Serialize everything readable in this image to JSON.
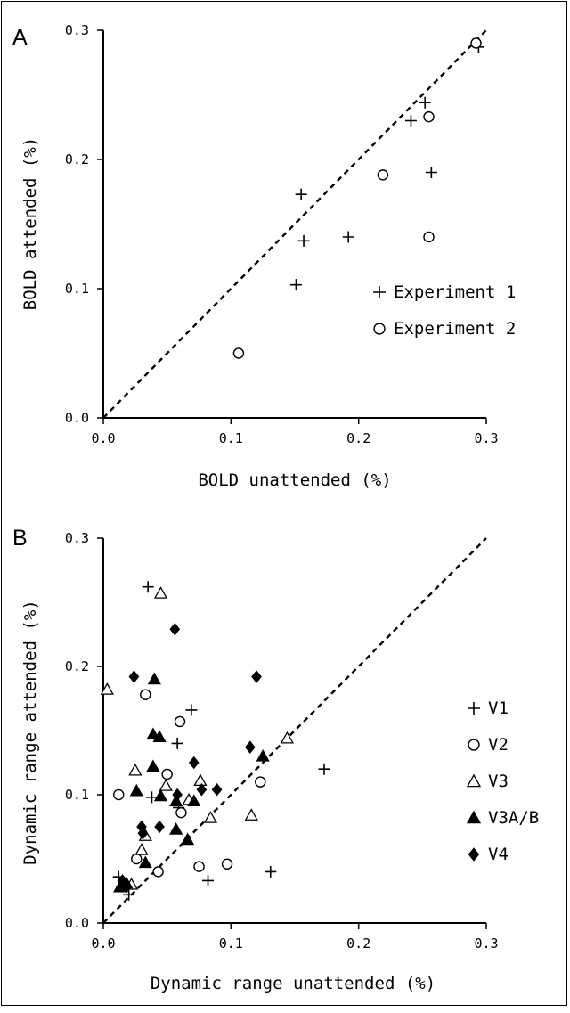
{
  "panels": [
    {
      "label": "A",
      "xlabel": "BOLD unattended (%)",
      "ylabel": "BOLD attended (%)",
      "xticks": [
        "0.0",
        "0.1",
        "0.2",
        "0.3"
      ],
      "yticks": [
        "0.0",
        "0.1",
        "0.2",
        "0.3"
      ]
    },
    {
      "label": "B",
      "xlabel": "Dynamic range unattended (%)",
      "ylabel": "Dynamic range attended (%)",
      "xticks": [
        "0.0",
        "0.1",
        "0.2",
        "0.3"
      ],
      "yticks": [
        "0.0",
        "0.1",
        "0.2",
        "0.3"
      ]
    }
  ],
  "chart_data": [
    {
      "type": "scatter",
      "panel": "A",
      "title": "",
      "xlabel": "BOLD unattended (%)",
      "ylabel": "BOLD attended (%)",
      "xlim": [
        0,
        0.3
      ],
      "ylim": [
        0,
        0.3
      ],
      "grid": false,
      "legend_position": "right",
      "reference_line": "identity (dashed)",
      "series": [
        {
          "name": "Experiment 1",
          "marker": "plus",
          "points": [
            [
              0.294,
              0.287
            ],
            [
              0.252,
              0.244
            ],
            [
              0.241,
              0.23
            ],
            [
              0.257,
              0.19
            ],
            [
              0.155,
              0.173
            ],
            [
              0.157,
              0.137
            ],
            [
              0.192,
              0.14
            ],
            [
              0.151,
              0.103
            ]
          ]
        },
        {
          "name": "Experiment 2",
          "marker": "open-circle",
          "points": [
            [
              0.292,
              0.29
            ],
            [
              0.255,
              0.233
            ],
            [
              0.219,
              0.188
            ],
            [
              0.255,
              0.14
            ],
            [
              0.106,
              0.05
            ]
          ]
        }
      ]
    },
    {
      "type": "scatter",
      "panel": "B",
      "title": "",
      "xlabel": "Dynamic range unattended (%)",
      "ylabel": "Dynamic range attended (%)",
      "xlim": [
        0,
        0.3
      ],
      "ylim": [
        0,
        0.3
      ],
      "grid": false,
      "legend_position": "right",
      "reference_line": "identity (dashed)",
      "series": [
        {
          "name": "V1",
          "marker": "plus",
          "points": [
            [
              0.035,
              0.262
            ],
            [
              0.069,
              0.166
            ],
            [
              0.058,
              0.14
            ],
            [
              0.038,
              0.098
            ],
            [
              0.173,
              0.12
            ],
            [
              0.059,
              0.09
            ],
            [
              0.131,
              0.04
            ],
            [
              0.082,
              0.033
            ],
            [
              0.012,
              0.036
            ],
            [
              0.02,
              0.022
            ]
          ]
        },
        {
          "name": "V2",
          "marker": "open-circle",
          "points": [
            [
              0.033,
              0.178
            ],
            [
              0.06,
              0.157
            ],
            [
              0.012,
              0.1
            ],
            [
              0.05,
              0.116
            ],
            [
              0.061,
              0.086
            ],
            [
              0.123,
              0.11
            ],
            [
              0.026,
              0.05
            ],
            [
              0.043,
              0.04
            ],
            [
              0.075,
              0.044
            ],
            [
              0.097,
              0.046
            ]
          ]
        },
        {
          "name": "V3",
          "marker": "open-triangle",
          "points": [
            [
              0.003,
              0.182
            ],
            [
              0.045,
              0.257
            ],
            [
              0.025,
              0.119
            ],
            [
              0.144,
              0.144
            ],
            [
              0.076,
              0.111
            ],
            [
              0.049,
              0.107
            ],
            [
              0.067,
              0.096
            ],
            [
              0.084,
              0.082
            ],
            [
              0.116,
              0.084
            ],
            [
              0.03,
              0.057
            ],
            [
              0.033,
              0.068
            ],
            [
              0.022,
              0.03
            ]
          ]
        },
        {
          "name": "V3A/B",
          "marker": "filled-triangle",
          "points": [
            [
              0.04,
              0.19
            ],
            [
              0.039,
              0.147
            ],
            [
              0.044,
              0.145
            ],
            [
              0.039,
              0.122
            ],
            [
              0.026,
              0.103
            ],
            [
              0.045,
              0.099
            ],
            [
              0.057,
              0.095
            ],
            [
              0.071,
              0.095
            ],
            [
              0.125,
              0.13
            ],
            [
              0.057,
              0.073
            ],
            [
              0.066,
              0.065
            ],
            [
              0.033,
              0.047
            ],
            [
              0.013,
              0.028
            ],
            [
              0.018,
              0.031
            ]
          ]
        },
        {
          "name": "V4",
          "marker": "filled-diamond",
          "points": [
            [
              0.056,
              0.229
            ],
            [
              0.024,
              0.192
            ],
            [
              0.12,
              0.192
            ],
            [
              0.071,
              0.125
            ],
            [
              0.115,
              0.137
            ],
            [
              0.077,
              0.104
            ],
            [
              0.089,
              0.104
            ],
            [
              0.058,
              0.1
            ],
            [
              0.03,
              0.075
            ],
            [
              0.031,
              0.07
            ],
            [
              0.044,
              0.075
            ],
            [
              0.018,
              0.028
            ],
            [
              0.015,
              0.033
            ]
          ]
        }
      ]
    }
  ]
}
